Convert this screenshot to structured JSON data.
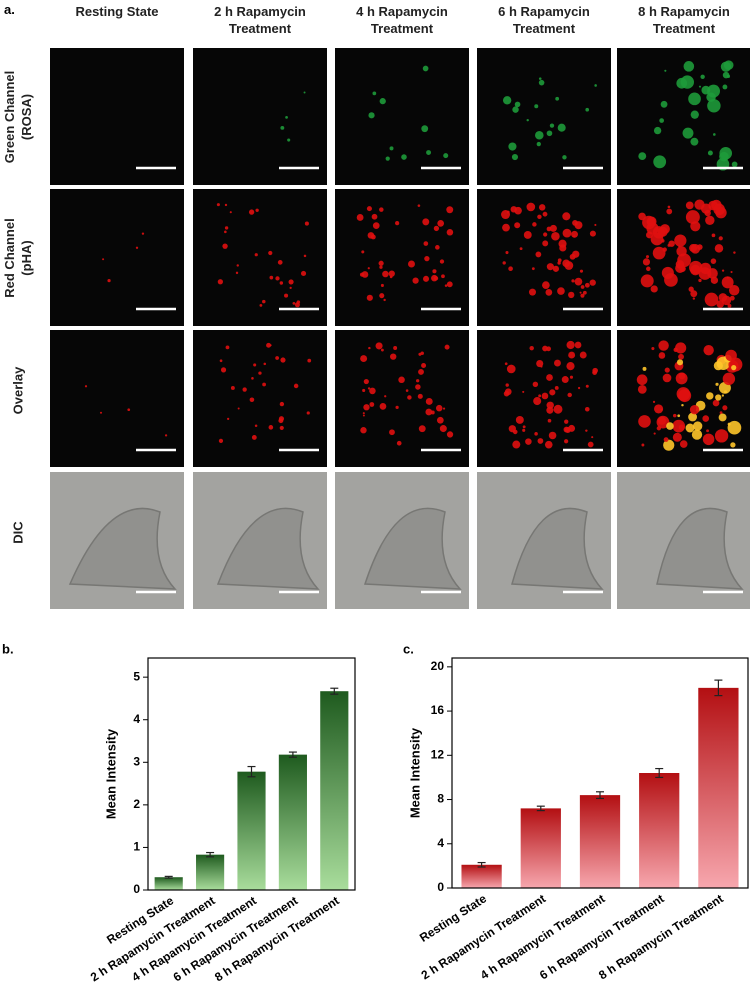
{
  "panel_a": {
    "label": "a.",
    "columns": [
      "Resting State",
      "2 h Rapamycin Treatment",
      "4 h Rapamycin Treatment",
      "6 h Rapamycin Treatment",
      "8 h Rapamycin Treatment"
    ],
    "rows": [
      "Green Channel (ROSA)",
      "Red Channel (pHA)",
      "Overlay",
      "DIC"
    ]
  },
  "chart_data": [
    {
      "type": "bar",
      "panel_label": "b.",
      "ylabel": "Mean Intensity",
      "categories": [
        "Resting State",
        "2 h Rapamycin Treatment",
        "4 h Rapamycin Treatment",
        "6 h Rapamycin Treatment",
        "8 h Rapamycin Treatment"
      ],
      "values": [
        0.3,
        0.83,
        2.78,
        3.18,
        4.67
      ],
      "errors": [
        0.02,
        0.05,
        0.12,
        0.06,
        0.07
      ],
      "color": "#1e5a1e",
      "color_bottom": "#a9dd9c",
      "ylim": [
        0,
        5.45
      ],
      "yticks": [
        0,
        1,
        2,
        3,
        4,
        5
      ]
    },
    {
      "type": "bar",
      "panel_label": "c.",
      "ylabel": "Mean Intensity",
      "categories": [
        "Resting State",
        "2 h Rapamycin Treatment",
        "4 h Rapamycin Treatment",
        "6 h Rapamycin Treatment",
        "8 h Rapamycin Treatment"
      ],
      "values": [
        2.1,
        7.2,
        8.4,
        10.4,
        18.1
      ],
      "errors": [
        0.2,
        0.2,
        0.3,
        0.4,
        0.7
      ],
      "color": "#b30f12",
      "color_bottom": "#f7a7ae",
      "ylim": [
        0,
        20.8
      ],
      "yticks": [
        0,
        4,
        8,
        12,
        16,
        20
      ]
    }
  ]
}
